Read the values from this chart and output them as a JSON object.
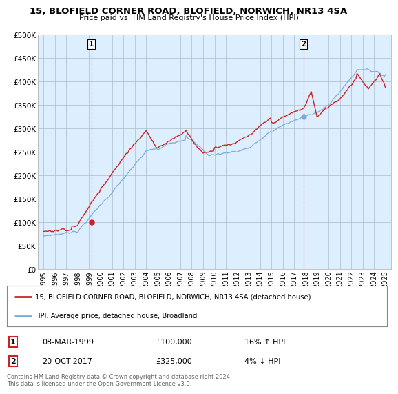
{
  "title": "15, BLOFIELD CORNER ROAD, BLOFIELD, NORWICH, NR13 4SA",
  "subtitle": "Price paid vs. HM Land Registry's House Price Index (HPI)",
  "legend_line1": "15, BLOFIELD CORNER ROAD, BLOFIELD, NORWICH, NR13 4SA (detached house)",
  "legend_line2": "HPI: Average price, detached house, Broadland",
  "sale1_label": "1",
  "sale1_date": "08-MAR-1999",
  "sale1_price": "£100,000",
  "sale1_hpi": "16% ↑ HPI",
  "sale2_label": "2",
  "sale2_date": "20-OCT-2017",
  "sale2_price": "£325,000",
  "sale2_hpi": "4% ↓ HPI",
  "footer": "Contains HM Land Registry data © Crown copyright and database right 2024.\nThis data is licensed under the Open Government Licence v3.0.",
  "red_color": "#cc2222",
  "blue_color": "#7aabdb",
  "chart_bg": "#ddeeff",
  "grid_color": "#aabbcc",
  "vline_color": "#dd4444",
  "marker1_x": 1999.19,
  "marker1_y": 100000,
  "marker2_x": 2017.8,
  "marker2_y": 325000,
  "ylim_min": 0,
  "ylim_max": 500000,
  "yticks": [
    0,
    50000,
    100000,
    150000,
    200000,
    250000,
    300000,
    350000,
    400000,
    450000,
    500000
  ],
  "xlim_min": 1994.5,
  "xlim_max": 2025.5,
  "background_color": "#ffffff"
}
